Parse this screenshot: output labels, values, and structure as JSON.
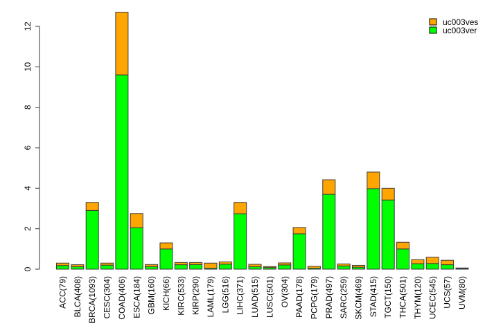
{
  "chart_data": {
    "type": "bar",
    "stacked": true,
    "title": "",
    "xlabel": "",
    "ylabel": "",
    "categories": [
      "ACC(79)",
      "BLCA(408)",
      "BRCA(1093)",
      "CESC(304)",
      "COAD(406)",
      "ESCA(184)",
      "GBM(160)",
      "KICH(66)",
      "KIRC(533)",
      "KIRP(290)",
      "LAML(179)",
      "LGG(516)",
      "LIHC(371)",
      "LUAD(515)",
      "LUSC(501)",
      "OV(304)",
      "PAAD(178)",
      "PCPG(179)",
      "PRAD(497)",
      "SARC(259)",
      "SKCM(469)",
      "STAD(415)",
      "TGCT(150)",
      "THCA(501)",
      "THYM(120)",
      "UCEC(545)",
      "UCS(57)",
      "UVM(80)"
    ],
    "series": [
      {
        "name": "uc003ves",
        "color": "#FFA500",
        "values": [
          0.12,
          0.1,
          0.4,
          0.1,
          3.1,
          0.7,
          0.1,
          0.3,
          0.11,
          0.1,
          0.25,
          0.11,
          0.56,
          0.12,
          0.05,
          0.1,
          0.31,
          0.09,
          0.72,
          0.1,
          0.09,
          0.82,
          0.58,
          0.33,
          0.2,
          0.31,
          0.22,
          0.03
        ]
      },
      {
        "name": "uc003ver",
        "color": "#00FF00",
        "values": [
          0.18,
          0.12,
          2.9,
          0.2,
          9.6,
          2.05,
          0.13,
          1.0,
          0.22,
          0.23,
          0.05,
          0.25,
          2.74,
          0.12,
          0.08,
          0.21,
          1.75,
          0.05,
          3.7,
          0.16,
          0.1,
          3.98,
          3.42,
          1.0,
          0.27,
          0.28,
          0.22,
          0.03
        ]
      }
    ],
    "stack_order_bottom_to_top": [
      "uc003ver",
      "uc003ves"
    ],
    "y_ticks": [
      "0",
      "2",
      "4",
      "6",
      "8",
      "10",
      "12"
    ],
    "ylim": [
      0,
      12.8
    ],
    "grid": false,
    "legend_position": "top-right",
    "legend_entries": [
      {
        "label": "uc003ves",
        "color": "#FFA500"
      },
      {
        "label": "uc003ver",
        "color": "#00FF00"
      }
    ]
  },
  "colors": {
    "background": "#ffffff",
    "bar_border": "#3a3a3a",
    "axis": "#555555",
    "text": "#000000",
    "legend_swatch_border": "#000000"
  }
}
